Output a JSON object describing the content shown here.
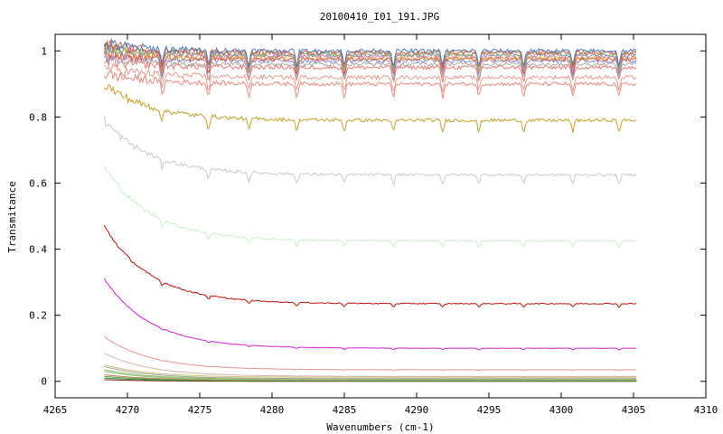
{
  "chart_data": {
    "type": "line",
    "title": "20100410_I01_191.JPG",
    "xlabel": "Wavenumbers (cm-1)",
    "ylabel": "Transmitance",
    "xlim": [
      4265,
      4310
    ],
    "ylim": [
      -0.05,
      1.05
    ],
    "x_ticks": [
      4265,
      4270,
      4275,
      4280,
      4285,
      4290,
      4295,
      4300,
      4305,
      4310
    ],
    "x_tick_labels": [
      "4265",
      "4270",
      "4275",
      "4280",
      "4285",
      "4290",
      "4295",
      "4300",
      "4305",
      "4310"
    ],
    "y_ticks": [
      0,
      0.2,
      0.4,
      0.6,
      0.8,
      1
    ],
    "y_tick_labels": [
      "0",
      "0.2",
      "0.4",
      "0.6",
      "0.8",
      "1"
    ],
    "grid": false,
    "x_range": [
      4268.4,
      4305.2
    ],
    "absorption_lines": [
      4272.4,
      4275.6,
      4278.4,
      4281.7,
      4285.0,
      4288.4,
      4291.8,
      4294.3,
      4297.4,
      4300.8,
      4304.0
    ],
    "series": [
      {
        "start": 1.02,
        "level": 1.0,
        "color": "#4a7ebb"
      },
      {
        "start": 1.02,
        "level": 0.995,
        "color": "#e8542e"
      },
      {
        "start": 1.01,
        "level": 0.99,
        "color": "#6db36d"
      },
      {
        "start": 1.01,
        "level": 0.985,
        "color": "#c77cd9"
      },
      {
        "start": 1.0,
        "level": 0.98,
        "color": "#d9a43c"
      },
      {
        "start": 0.99,
        "level": 0.975,
        "color": "#e8542e"
      },
      {
        "start": 0.99,
        "level": 0.97,
        "color": "#8a8ad6"
      },
      {
        "start": 0.98,
        "level": 0.96,
        "color": "#aaaaaa"
      },
      {
        "start": 0.97,
        "level": 0.95,
        "color": "#e8776e"
      },
      {
        "start": 0.95,
        "level": 0.92,
        "color": "#e89a90"
      },
      {
        "start": 0.93,
        "level": 0.9,
        "color": "#e88a82"
      },
      {
        "start": 0.9,
        "level": 0.79,
        "color": "#c4a020"
      },
      {
        "start": 0.79,
        "level": 0.625,
        "color": "#c8c8c8"
      },
      {
        "start": 0.65,
        "level": 0.425,
        "color": "#c8f0c8"
      },
      {
        "start": 0.47,
        "level": 0.235,
        "color": "#c01010"
      },
      {
        "start": 0.31,
        "level": 0.1,
        "color": "#d020d0"
      },
      {
        "start": 0.135,
        "level": 0.035,
        "color": "#e89090"
      },
      {
        "start": 0.085,
        "level": 0.015,
        "color": "#d8b0a8"
      },
      {
        "start": 0.05,
        "level": 0.012,
        "color": "#c8c070"
      },
      {
        "start": 0.045,
        "level": 0.008,
        "color": "#a0a0a0"
      },
      {
        "start": 0.035,
        "level": 0.006,
        "color": "#9ab85a"
      },
      {
        "start": 0.03,
        "level": 0.004,
        "color": "#7dc87d"
      },
      {
        "start": 0.02,
        "level": 0.003,
        "color": "#c87850"
      },
      {
        "start": 0.015,
        "level": 0.002,
        "color": "#4aa04a"
      },
      {
        "start": 0.01,
        "level": 0.001,
        "color": "#2a8a2a"
      },
      {
        "start": 0.005,
        "level": 0.0,
        "color": "#8b2020"
      }
    ]
  }
}
